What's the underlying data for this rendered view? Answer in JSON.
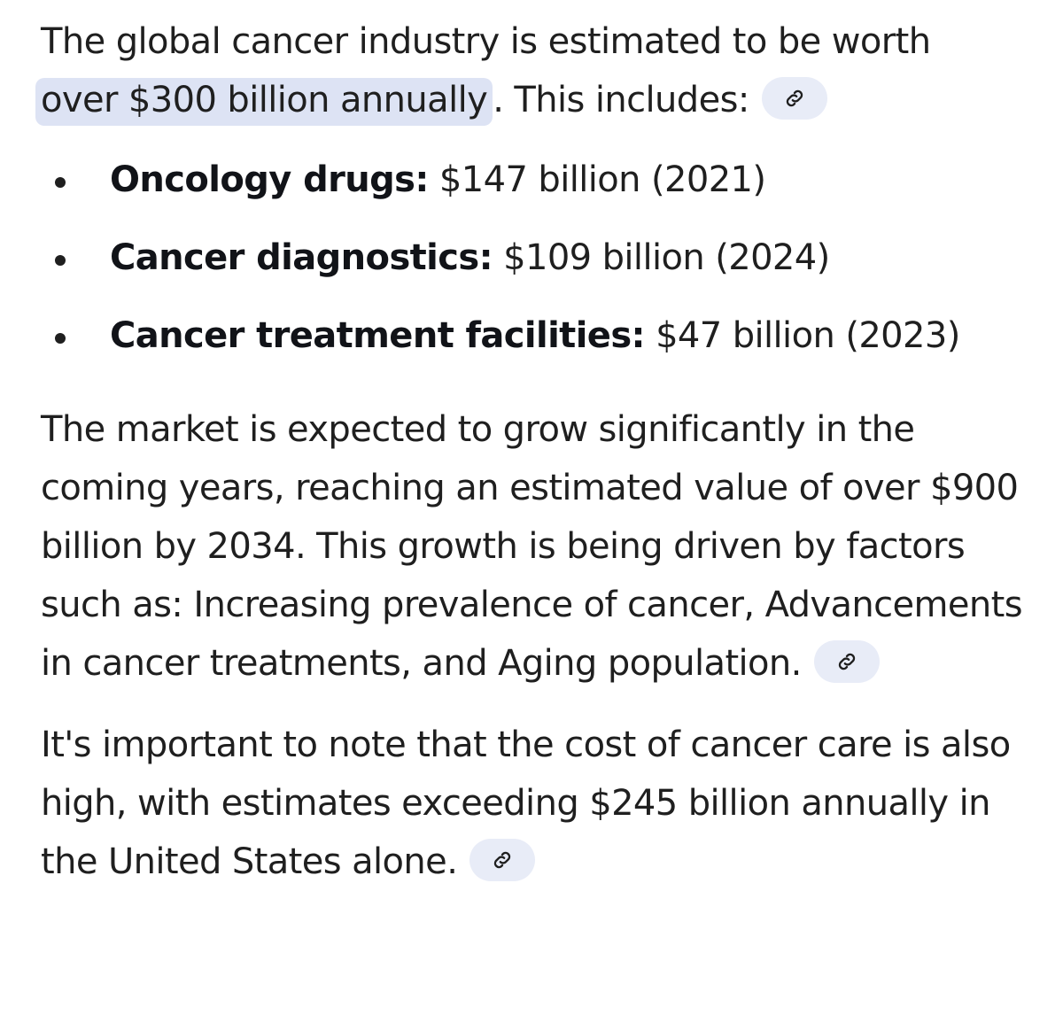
{
  "intro": {
    "before": "The global cancer industry is estimated to be worth",
    "highlight": "over $300 billion annually",
    "after": ". This includes:",
    "source_icon": "link-icon"
  },
  "items": [
    {
      "term": "Oncology drugs:",
      "detail": " $147 billion (2021)"
    },
    {
      "term": "Cancer diagnostics:",
      "detail": " $109 billion (2024)"
    },
    {
      "term": "Cancer treatment facilities:",
      "detail": " $47 billion (2023)"
    }
  ],
  "growth": {
    "text": "The market is expected to grow significantly in the coming years, reaching an estimated value of over $900 billion by 2034. This growth is being driven by factors such as: Increasing prevalence of cancer, Advancements in cancer treatments, and Aging population.",
    "source_icon": "link-icon"
  },
  "note": {
    "text": "It's important to note that the cost of cancer care is also high, with estimates exceeding $245 billion annually in the United States alone.",
    "source_icon": "link-icon"
  },
  "colors": {
    "highlight_bg": "#dde3f4",
    "chip_bg": "#e8ecf7",
    "text": "#1f1f1f"
  }
}
